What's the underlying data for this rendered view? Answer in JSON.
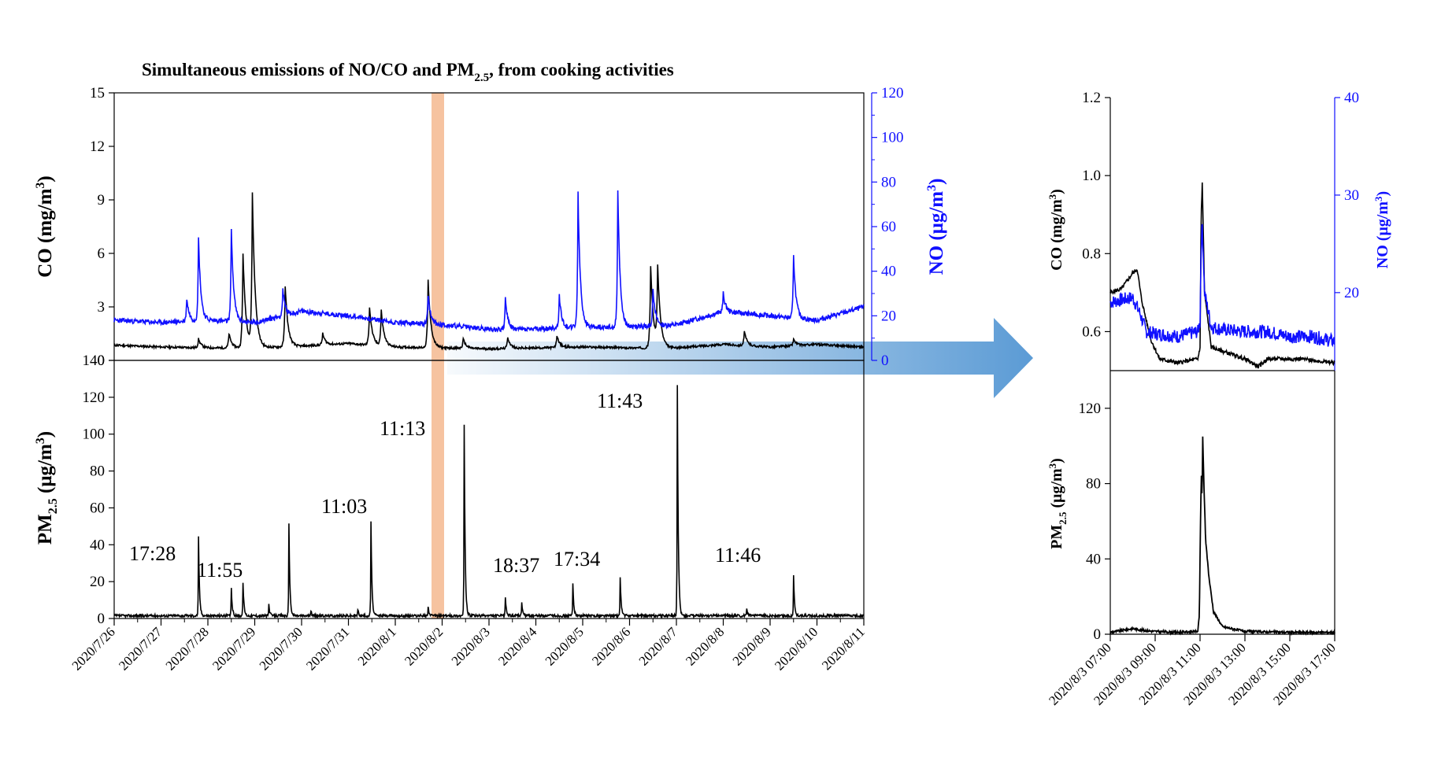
{
  "colors": {
    "co": "#000000",
    "no": "#1010ff",
    "pm": "#000000",
    "highlight": "#f5b98f",
    "arrow": "#5b9bd5"
  },
  "chart_data": [
    {
      "id": "main-gas",
      "type": "line",
      "title": "Simultaneous emissions of NO/CO and PM",
      "title_sub": "2.5",
      "title_tail": ", from cooking activities",
      "ylabel": "CO (mg/m",
      "ylabel_sup": "3",
      "ylabel_right": "NO (μg/m",
      "ylabel_right_sup": "3",
      "ylim": [
        0,
        15
      ],
      "yticks": [
        "0",
        "3",
        "6",
        "9",
        "12",
        "15"
      ],
      "ylim_right": [
        0,
        120
      ],
      "yticks_right": [
        "0",
        "20",
        "40",
        "60",
        "80",
        "100",
        "120"
      ],
      "highlight_range": [
        "2020/8/1 18:00",
        "2020/8/2 02:00"
      ],
      "series": [
        {
          "name": "CO",
          "color": "#000000",
          "baseline": [
            [
              0,
              0.85
            ],
            [
              1,
              0.75
            ],
            [
              2,
              0.7
            ],
            [
              3,
              0.7
            ],
            [
              4,
              0.8
            ],
            [
              5,
              0.95
            ],
            [
              6,
              0.75
            ],
            [
              7,
              0.7
            ],
            [
              8,
              0.65
            ],
            [
              9,
              0.7
            ],
            [
              10,
              0.75
            ],
            [
              11,
              0.7
            ],
            [
              12,
              0.7
            ],
            [
              13,
              0.9
            ],
            [
              14,
              0.75
            ],
            [
              15,
              0.9
            ],
            [
              16,
              0.75
            ]
          ],
          "peaks": [
            [
              1.8,
              1.2
            ],
            [
              2.45,
              1.5
            ],
            [
              2.75,
              6.0
            ],
            [
              2.95,
              9.2
            ],
            [
              3.65,
              4.2
            ],
            [
              4.45,
              1.5
            ],
            [
              5.45,
              3.0
            ],
            [
              5.7,
              2.8
            ],
            [
              6.7,
              4.5
            ],
            [
              7.45,
              1.2
            ],
            [
              8.4,
              1.3
            ],
            [
              9.45,
              1.4
            ],
            [
              11.45,
              5.3
            ],
            [
              11.6,
              5.0
            ],
            [
              13.45,
              1.6
            ],
            [
              14.5,
              1.2
            ]
          ]
        },
        {
          "name": "NO",
          "color": "#1010ff",
          "axis": "right",
          "baseline": [
            [
              0,
              18
            ],
            [
              1,
              17
            ],
            [
              2,
              18
            ],
            [
              3,
              17
            ],
            [
              4,
              22
            ],
            [
              5,
              20
            ],
            [
              6,
              17
            ],
            [
              7,
              16
            ],
            [
              8,
              14
            ],
            [
              9,
              14
            ],
            [
              10,
              15
            ],
            [
              11,
              15
            ],
            [
              12,
              16
            ],
            [
              13,
              22
            ],
            [
              14,
              20
            ],
            [
              15,
              18
            ],
            [
              16,
              24
            ]
          ],
          "peaks": [
            [
              1.55,
              28
            ],
            [
              1.8,
              55
            ],
            [
              2.5,
              60
            ],
            [
              3.6,
              32
            ],
            [
              6.7,
              30
            ],
            [
              8.35,
              28
            ],
            [
              9.5,
              30
            ],
            [
              9.9,
              76
            ],
            [
              10.75,
              76
            ],
            [
              11.5,
              33
            ],
            [
              13.0,
              30
            ],
            [
              14.5,
              48
            ]
          ]
        }
      ]
    },
    {
      "id": "main-pm",
      "type": "line",
      "ylabel": "PM",
      "ylabel_sub": "2.5",
      "ylabel_unit": " (μg/m",
      "ylabel_sup": "3",
      "ylim": [
        0,
        140
      ],
      "yticks": [
        "0",
        "20",
        "40",
        "60",
        "80",
        "100",
        "120",
        "140"
      ],
      "xlim": [
        "2020/7/26",
        "2020/8/11"
      ],
      "xticks": [
        "2020/7/26",
        "2020/7/27",
        "2020/7/28",
        "2020/7/29",
        "2020/7/30",
        "2020/7/31",
        "2020/8/1",
        "2020/8/2",
        "2020/8/3",
        "2020/8/4",
        "2020/8/5",
        "2020/8/6",
        "2020/8/7",
        "2020/8/8",
        "2020/8/9",
        "2020/8/10",
        "2020/8/11"
      ],
      "series": [
        {
          "name": "PM2.5",
          "color": "#000000",
          "baseline": 1.5,
          "peaks": [
            [
              1.8,
              44
            ],
            [
              2.5,
              17
            ],
            [
              2.75,
              20
            ],
            [
              3.3,
              8
            ],
            [
              3.73,
              51
            ],
            [
              4.2,
              4
            ],
            [
              5.2,
              5
            ],
            [
              5.48,
              53
            ],
            [
              6.7,
              7
            ],
            [
              7.47,
              105
            ],
            [
              8.35,
              12
            ],
            [
              8.7,
              9
            ],
            [
              9.79,
              19
            ],
            [
              10.8,
              23
            ],
            [
              12.02,
              126
            ],
            [
              13.5,
              5
            ],
            [
              14.5,
              24
            ]
          ]
        }
      ],
      "annotations": [
        "17:28",
        "11:55",
        "11:03",
        "11:13",
        "18:37",
        "17:34",
        "11:43",
        "11:46"
      ]
    },
    {
      "id": "inset-gas",
      "type": "line",
      "ylabel": "CO (mg/m",
      "ylabel_sup": "3",
      "ylabel_right": "NO (μg/m",
      "ylabel_right_sup": "3",
      "ylim": [
        0.5,
        1.2
      ],
      "yticks": [
        "0.6",
        "0.8",
        "1.0",
        "1.2"
      ],
      "ylim_right": [
        12,
        40
      ],
      "yticks_right": [
        "20",
        "30",
        "40"
      ],
      "series": [
        {
          "name": "CO",
          "color": "#000000",
          "points": [
            [
              0,
              0.7
            ],
            [
              0.5,
              0.71
            ],
            [
              1.0,
              0.75
            ],
            [
              1.2,
              0.76
            ],
            [
              1.4,
              0.68
            ],
            [
              1.8,
              0.58
            ],
            [
              2.2,
              0.53
            ],
            [
              3.0,
              0.52
            ],
            [
              3.9,
              0.53
            ],
            [
              4.0,
              0.56
            ],
            [
              4.05,
              0.9
            ],
            [
              4.1,
              0.98
            ],
            [
              4.2,
              0.7
            ],
            [
              4.5,
              0.56
            ],
            [
              5.0,
              0.55
            ],
            [
              6.0,
              0.53
            ],
            [
              6.6,
              0.51
            ],
            [
              7.0,
              0.53
            ],
            [
              8.5,
              0.53
            ],
            [
              10.0,
              0.52
            ]
          ]
        },
        {
          "name": "NO",
          "color": "#1010ff",
          "points": [
            [
              0,
              19
            ],
            [
              1.0,
              19.5
            ],
            [
              1.3,
              18
            ],
            [
              1.6,
              16
            ],
            [
              2.0,
              15.8
            ],
            [
              3.0,
              15.5
            ],
            [
              3.9,
              16
            ],
            [
              4.0,
              17
            ],
            [
              4.05,
              25
            ],
            [
              4.1,
              27
            ],
            [
              4.2,
              20
            ],
            [
              4.5,
              16.5
            ],
            [
              5.0,
              16.2
            ],
            [
              6.0,
              16
            ],
            [
              7.0,
              16
            ],
            [
              8.0,
              15.5
            ],
            [
              9.0,
              15.5
            ],
            [
              10.0,
              15
            ]
          ]
        }
      ]
    },
    {
      "id": "inset-pm",
      "type": "line",
      "ylabel": "PM",
      "ylabel_sub": "2.5",
      "ylabel_unit": " (μg/m",
      "ylabel_sup": "3",
      "ylim": [
        0,
        140
      ],
      "yticks": [
        "0",
        "40",
        "80",
        "120"
      ],
      "xlim": [
        "2020/8/3 07:00",
        "2020/8/3 17:00"
      ],
      "xticks": [
        "2020/8/3 07:00",
        "2020/8/3 09:00",
        "2020/8/3 11:00",
        "2020/8/3 13:00",
        "2020/8/3 15:00",
        "2020/8/3 17:00"
      ],
      "series": [
        {
          "name": "PM2.5",
          "color": "#000000",
          "points": [
            [
              0,
              1
            ],
            [
              0.5,
              2
            ],
            [
              1.0,
              3
            ],
            [
              1.5,
              2
            ],
            [
              2.0,
              1.5
            ],
            [
              3.0,
              1
            ],
            [
              3.9,
              1.5
            ],
            [
              3.97,
              10
            ],
            [
              4.02,
              60
            ],
            [
              4.06,
              84
            ],
            [
              4.09,
              70
            ],
            [
              4.12,
              105
            ],
            [
              4.17,
              80
            ],
            [
              4.25,
              50
            ],
            [
              4.4,
              30
            ],
            [
              4.6,
              12
            ],
            [
              5.0,
              4
            ],
            [
              6.0,
              1.5
            ],
            [
              8.0,
              1
            ],
            [
              10.0,
              1
            ]
          ]
        }
      ]
    }
  ]
}
